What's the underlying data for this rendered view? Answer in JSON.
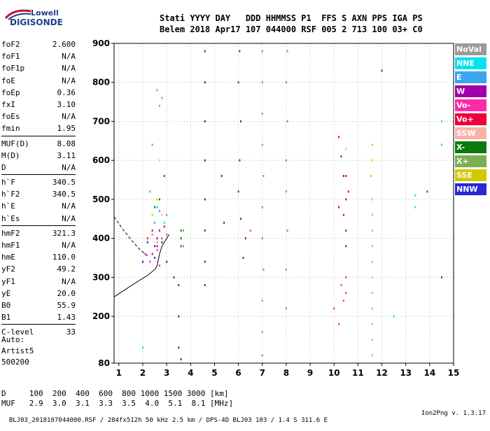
{
  "logo": {
    "line1": "Lowell",
    "line2": "DIGISONDE"
  },
  "header": {
    "row1": "Stati YYYY DAY   DDD HHMMSS P1  FFS S AXN PPS IGA PS",
    "row2": "Belem 2018 Apr17 107 044000 RSF 005 2 713 100 03+ C0"
  },
  "params": [
    {
      "name": "foF2",
      "value": "2.600"
    },
    {
      "name": "foF1",
      "value": "N/A"
    },
    {
      "name": "foF1p",
      "value": "N/A"
    },
    {
      "name": "foE",
      "value": "N/A"
    },
    {
      "name": "foEp",
      "value": "0.36"
    },
    {
      "name": "fxI",
      "value": "3.10"
    },
    {
      "name": "foEs",
      "value": "N/A"
    },
    {
      "name": "fmin",
      "value": "1.95"
    },
    {
      "name": "MUF(D)",
      "value": "8.08"
    },
    {
      "name": "M(D)",
      "value": "3.11"
    },
    {
      "name": "D",
      "value": "N/A"
    },
    {
      "name": "h`F",
      "value": "340.5"
    },
    {
      "name": "h`F2",
      "value": "340.5"
    },
    {
      "name": "h`E",
      "value": "N/A"
    },
    {
      "name": "h`Es",
      "value": "N/A"
    },
    {
      "name": "hmF2",
      "value": "321.3"
    },
    {
      "name": "hmF1",
      "value": "N/A"
    },
    {
      "name": "hmE",
      "value": "110.0"
    },
    {
      "name": "yF2",
      "value": "49.2"
    },
    {
      "name": "yF1",
      "value": "N/A"
    },
    {
      "name": "yE",
      "value": "20.0"
    },
    {
      "name": "B0",
      "value": "55.9"
    },
    {
      "name": "B1",
      "value": "1.43"
    },
    {
      "name": "C-level",
      "value": "33"
    }
  ],
  "auto": {
    "label": "Auto:",
    "artist": "Artist5",
    "code": "500200"
  },
  "legend": [
    {
      "label": "NoVal",
      "color": "#9a9a9a"
    },
    {
      "label": "NNE",
      "color": "#00e4f0"
    },
    {
      "label": "E",
      "color": "#3aa6f0"
    },
    {
      "label": "W",
      "color": "#a000a8"
    },
    {
      "label": "Vo-",
      "color": "#ff2aa8"
    },
    {
      "label": "Vo+",
      "color": "#f0003a"
    },
    {
      "label": "SSW",
      "color": "#f8b2a8"
    },
    {
      "label": "X-",
      "color": "#0a7a0a"
    },
    {
      "label": "X+",
      "color": "#7ab050"
    },
    {
      "label": "SSE",
      "color": "#d0c800"
    },
    {
      "label": "NNW",
      "color": "#2828d8"
    }
  ],
  "dmuf": {
    "d_row": "D     100  200  400  600  800 1000 1500 3000 [km]",
    "muf_row": "MUF   2.9  3.0  3.1  3.3  3.5  4.0  5.1  8.1 [MHz]"
  },
  "footer": {
    "left": "BLJ03_2018107044000.RSF / 284fx512h 50 kHz 2.5 km / DPS-4D BLJ03 103 / 1.4 S 311.6 E",
    "right": "Ion2Png v. 1.3.17"
  },
  "chart_data": {
    "type": "scatter",
    "title": "",
    "xlabel": "",
    "ylabel": "",
    "xlim": [
      0.8,
      15
    ],
    "ylim": [
      80,
      900
    ],
    "x_ticks": [
      1,
      2,
      3,
      4,
      5,
      6,
      7,
      8,
      9,
      10,
      11,
      12,
      13,
      14,
      15
    ],
    "y_ticks": [
      80,
      200,
      300,
      400,
      500,
      600,
      700,
      800,
      900
    ],
    "grid": "dotted",
    "series": [
      {
        "name": "W",
        "color": "#a000a8",
        "points": [
          [
            2.4,
            360
          ],
          [
            2.5,
            380
          ],
          [
            2.6,
            400
          ],
          [
            2.7,
            420
          ],
          [
            2.8,
            390
          ],
          [
            2.9,
            430
          ],
          [
            3.0,
            410
          ],
          [
            6.0,
            520
          ],
          [
            6.05,
            600
          ],
          [
            6.1,
            700
          ],
          [
            6.0,
            800
          ],
          [
            6.05,
            880
          ],
          [
            6.1,
            450
          ],
          [
            6.3,
            400
          ],
          [
            6.2,
            350
          ],
          [
            10.5,
            500
          ],
          [
            10.5,
            420
          ],
          [
            10.5,
            380
          ],
          [
            10.4,
            560
          ],
          [
            10.3,
            610
          ],
          [
            10.2,
            480
          ]
        ]
      },
      {
        "name": "E",
        "color": "#3aa6f0",
        "points": [
          [
            7.0,
            880
          ],
          [
            7.0,
            800
          ],
          [
            7.0,
            720
          ],
          [
            7.0,
            640
          ],
          [
            7.05,
            560
          ],
          [
            7.0,
            480
          ],
          [
            7.0,
            400
          ],
          [
            7.05,
            320
          ],
          [
            7.0,
            240
          ],
          [
            7.0,
            160
          ],
          [
            7.0,
            100
          ],
          [
            8.05,
            880
          ],
          [
            8.0,
            800
          ],
          [
            8.05,
            700
          ],
          [
            8.0,
            600
          ],
          [
            8.0,
            520
          ],
          [
            8.05,
            420
          ],
          [
            8.0,
            320
          ],
          [
            8.0,
            220
          ],
          [
            2.5,
            440
          ],
          [
            2.7,
            470
          ],
          [
            3.0,
            460
          ],
          [
            6.95,
            900
          ]
        ]
      },
      {
        "name": "NNW",
        "color": "#2828d8",
        "points": [
          [
            2.2,
            390
          ],
          [
            2.5,
            350
          ],
          [
            3.0,
            340
          ],
          [
            3.3,
            300
          ],
          [
            3.5,
            280
          ],
          [
            3.5,
            200
          ],
          [
            3.5,
            120
          ],
          [
            3.6,
            90
          ],
          [
            4.6,
            880
          ],
          [
            4.6,
            800
          ],
          [
            4.6,
            700
          ],
          [
            4.6,
            600
          ],
          [
            4.6,
            500
          ],
          [
            4.6,
            420
          ],
          [
            4.6,
            340
          ],
          [
            4.6,
            280
          ],
          [
            5.3,
            560
          ],
          [
            5.4,
            440
          ],
          [
            2.0,
            340
          ]
        ]
      },
      {
        "name": "SSE",
        "color": "#d0c800",
        "points": [
          [
            11.6,
            500
          ],
          [
            11.6,
            460
          ],
          [
            11.6,
            420
          ],
          [
            11.6,
            380
          ],
          [
            11.6,
            340
          ],
          [
            11.6,
            300
          ],
          [
            11.6,
            260
          ],
          [
            11.6,
            220
          ],
          [
            11.6,
            180
          ],
          [
            11.6,
            140
          ],
          [
            11.6,
            100
          ],
          [
            11.55,
            560
          ],
          [
            11.6,
            600
          ],
          [
            11.6,
            640
          ],
          [
            2.4,
            460
          ],
          [
            2.6,
            500
          ]
        ]
      },
      {
        "name": "Vo-",
        "color": "#ff2aa8",
        "points": [
          [
            2.1,
            360
          ],
          [
            2.3,
            340
          ],
          [
            2.6,
            370
          ],
          [
            2.8,
            400
          ],
          [
            10.0,
            220
          ],
          [
            10.2,
            180
          ],
          [
            10.5,
            300
          ],
          [
            10.3,
            280
          ],
          [
            10.4,
            240
          ],
          [
            10.5,
            260
          ],
          [
            6.5,
            420
          ],
          [
            2.7,
            330
          ]
        ]
      },
      {
        "name": "Vo+",
        "color": "#f0003a",
        "points": [
          [
            2.2,
            400
          ],
          [
            2.4,
            420
          ],
          [
            10.4,
            460
          ],
          [
            10.6,
            520
          ],
          [
            10.5,
            560
          ],
          [
            13.9,
            520
          ],
          [
            10.2,
            660
          ],
          [
            2.6,
            380
          ]
        ]
      },
      {
        "name": "X-",
        "color": "#0a7a0a",
        "points": [
          [
            2.5,
            480
          ],
          [
            2.7,
            500
          ],
          [
            3.6,
            400
          ],
          [
            3.6,
            420
          ],
          [
            3.6,
            380
          ],
          [
            14.5,
            300
          ],
          [
            12.0,
            830
          ],
          [
            2.9,
            560
          ]
        ]
      },
      {
        "name": "X+",
        "color": "#7ab050",
        "points": [
          [
            2.3,
            520
          ],
          [
            2.6,
            780
          ],
          [
            3.7,
            420
          ],
          [
            3.7,
            380
          ],
          [
            2.8,
            760
          ],
          [
            2.4,
            640
          ],
          [
            2.7,
            740
          ]
        ]
      },
      {
        "name": "NNE",
        "color": "#00e4f0",
        "points": [
          [
            2.0,
            120
          ],
          [
            2.6,
            480
          ],
          [
            13.4,
            510
          ],
          [
            13.4,
            480
          ],
          [
            14.5,
            640
          ],
          [
            14.5,
            700
          ],
          [
            12.5,
            200
          ],
          [
            2.9,
            440
          ]
        ]
      },
      {
        "name": "NoVal",
        "color": "#9a9a9a",
        "points": [
          [
            2.6,
            390
          ],
          [
            3.0,
            410
          ],
          [
            2.4,
            410
          ]
        ]
      },
      {
        "name": "SSW",
        "color": "#f8b2a8",
        "points": [
          [
            2.8,
            460
          ],
          [
            10.5,
            630
          ],
          [
            2.7,
            600
          ]
        ]
      }
    ],
    "profile_curve": [
      [
        0.8,
        250
      ],
      [
        1.3,
        270
      ],
      [
        1.8,
        290
      ],
      [
        2.2,
        305
      ],
      [
        2.5,
        320
      ],
      [
        2.6,
        330
      ],
      [
        2.65,
        345
      ],
      [
        2.7,
        360
      ],
      [
        2.8,
        380
      ],
      [
        3.0,
        400
      ],
      [
        3.1,
        410
      ]
    ],
    "profile_dashed": [
      [
        0.8,
        455
      ],
      [
        1.2,
        420
      ],
      [
        1.6,
        390
      ],
      [
        1.9,
        370
      ],
      [
        2.2,
        355
      ]
    ]
  }
}
